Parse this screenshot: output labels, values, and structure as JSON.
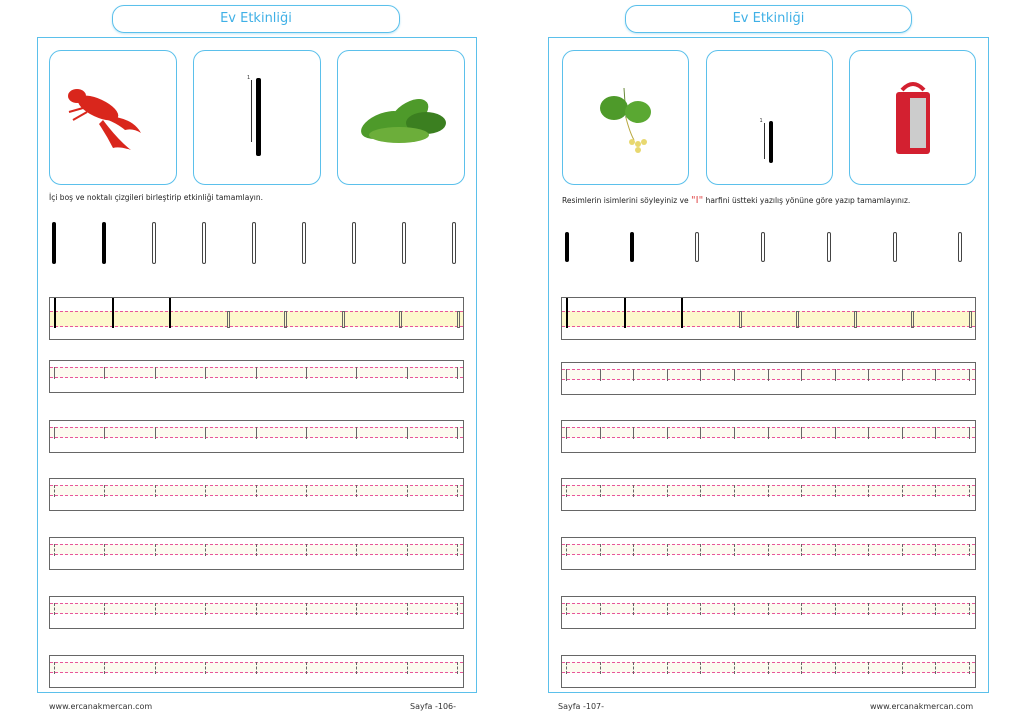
{
  "colors": {
    "accent": "#5bc0eb",
    "guide": "#e8559a",
    "band_yellow": "#fdf8cc",
    "band_light": "#fcfbf0",
    "lobster": "#d9261c",
    "leaf": "#4e9a2a",
    "lantern": "#d32030"
  },
  "left_page": {
    "title": "Ev Etkinliği",
    "cards": [
      {
        "icon": "lobster-image"
      },
      {
        "icon": "letter-I-stroke-guide",
        "stroke_number": "1"
      },
      {
        "icon": "spinach-image"
      }
    ],
    "instruction": "İçi boş ve noktalı çizgileri birleştirip etkinliği tamamlayın.",
    "footer_site": "www.ercanakmercan.com",
    "footer_page": "Sayfa -106-"
  },
  "right_page": {
    "title": "Ev Etkinliği",
    "cards": [
      {
        "icon": "linden-leaf-image"
      },
      {
        "icon": "letter-I-stroke-guide",
        "stroke_number": "1"
      },
      {
        "icon": "red-lantern-image"
      }
    ],
    "instruction_before": "Resimlerin isimlerini söyleyiniz ve",
    "instruction_letter": "\"I\"",
    "instruction_after": "harfini üstteki yazılış yönüne göre yazıp tamamlayınız.",
    "footer_page": "Sayfa -107-",
    "footer_site": "www.ercanakmercan.com"
  }
}
